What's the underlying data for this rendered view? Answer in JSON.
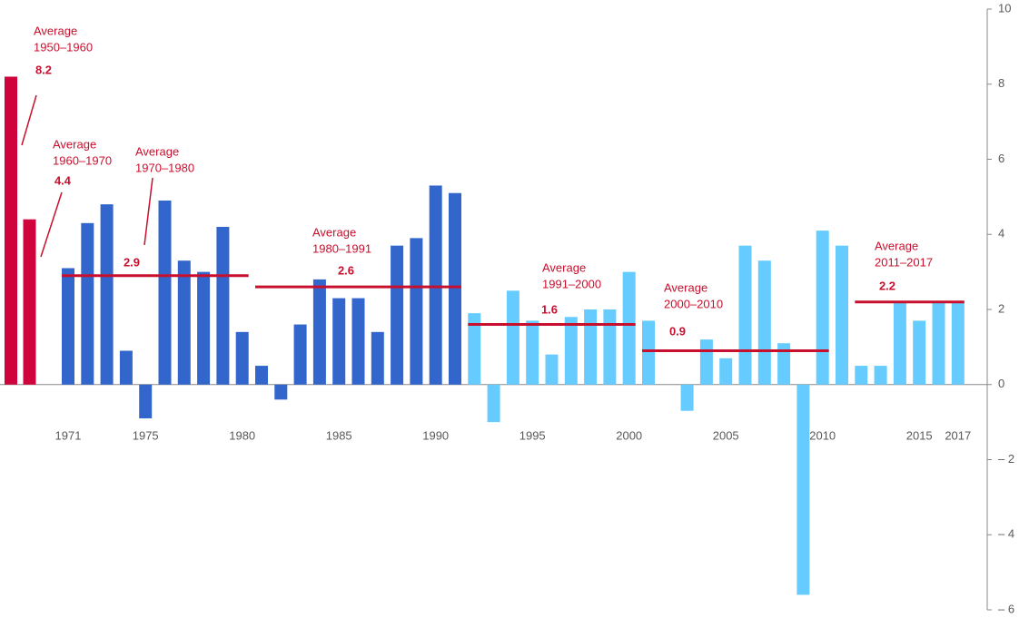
{
  "chart_data": {
    "type": "bar",
    "categories": [
      null,
      null,
      "1971",
      null,
      null,
      null,
      "1975",
      null,
      null,
      null,
      null,
      "1980",
      null,
      null,
      null,
      null,
      "1985",
      null,
      null,
      null,
      null,
      "1990",
      null,
      null,
      null,
      null,
      "1995",
      null,
      null,
      null,
      null,
      "2000",
      null,
      null,
      null,
      null,
      "2005",
      null,
      null,
      null,
      null,
      "2010",
      null,
      null,
      null,
      null,
      "2015",
      null,
      "2017"
    ],
    "values": [
      8.2,
      4.4,
      3.1,
      4.3,
      4.8,
      0.9,
      -0.9,
      4.9,
      3.3,
      3.0,
      4.2,
      1.4,
      0.5,
      -0.4,
      1.6,
      2.8,
      2.3,
      2.3,
      1.4,
      3.7,
      3.9,
      5.3,
      5.1,
      1.9,
      -1.0,
      2.5,
      1.7,
      0.8,
      1.8,
      2.0,
      2.0,
      3.0,
      1.7,
      0,
      -0.7,
      1.2,
      0.7,
      3.7,
      3.3,
      1.1,
      -5.6,
      4.1,
      3.7,
      0.5,
      0.5,
      2.2,
      1.7,
      2.2,
      2.2
    ],
    "colors": [
      "#d0043c",
      "#d0043c",
      "#3366cc",
      "#3366cc",
      "#3366cc",
      "#3366cc",
      "#3366cc",
      "#3366cc",
      "#3366cc",
      "#3366cc",
      "#3366cc",
      "#3366cc",
      "#3366cc",
      "#3366cc",
      "#3366cc",
      "#3366cc",
      "#3366cc",
      "#3366cc",
      "#3366cc",
      "#3366cc",
      "#3366cc",
      "#3366cc",
      "#3366cc",
      "#66ccff",
      "#66ccff",
      "#66ccff",
      "#66ccff",
      "#66ccff",
      "#66ccff",
      "#66ccff",
      "#66ccff",
      "#66ccff",
      "#66ccff",
      "#66ccff",
      "#66ccff",
      "#66ccff",
      "#66ccff",
      "#66ccff",
      "#66ccff",
      "#66ccff",
      "#66ccff",
      "#66ccff",
      "#66ccff",
      "#66ccff",
      "#66ccff",
      "#66ccff",
      "#66ccff",
      "#66ccff",
      "#66ccff"
    ],
    "ylim": [
      -6,
      10
    ],
    "yticks": [
      {
        "value": -6,
        "label": "– 6"
      },
      {
        "value": -4,
        "label": "– 4"
      },
      {
        "value": -2,
        "label": "– 2"
      },
      0,
      2,
      4,
      6,
      8,
      10
    ],
    "annotation_color": "#c8102e",
    "averages": [
      {
        "label": "Average",
        "period": "1950–1960",
        "value": 8.2,
        "line": false
      },
      {
        "label": "Average",
        "period": "1960–1970",
        "value": 4.4,
        "line": false
      },
      {
        "label": "Average",
        "period": "1970–1980",
        "value": 2.9,
        "line": true
      },
      {
        "label": "Average",
        "period": "1980–1991",
        "value": 2.6,
        "line": true
      },
      {
        "label": "Average",
        "period": "1991–2000",
        "value": 1.6,
        "line": true
      },
      {
        "label": "Average",
        "period": "2000–2010",
        "value": 0.9,
        "line": true
      },
      {
        "label": "Average",
        "period": "2011–2017",
        "value": 2.2,
        "line": true
      }
    ]
  }
}
